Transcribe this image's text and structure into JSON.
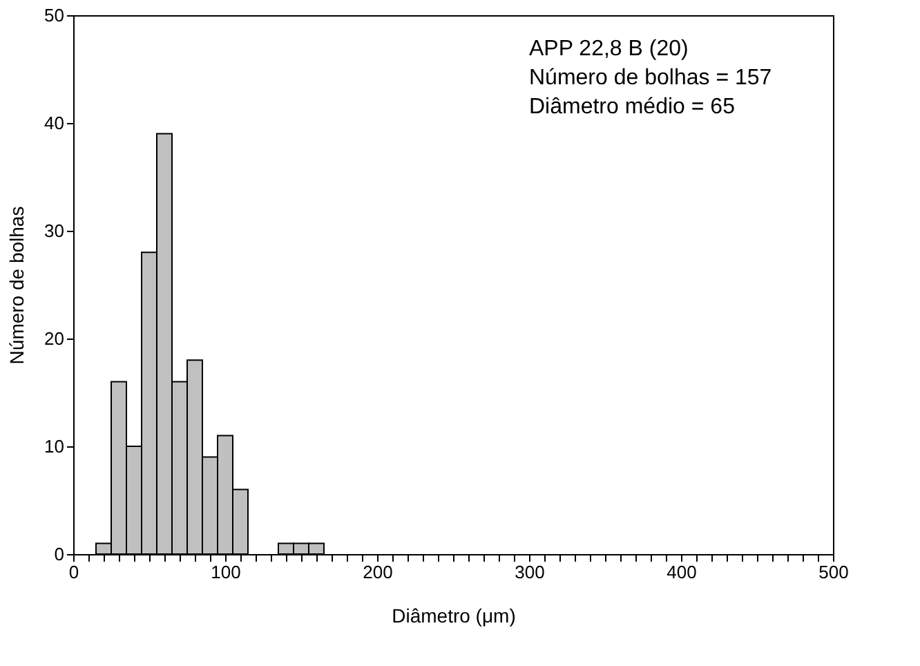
{
  "chart_data": {
    "type": "histogram",
    "xlabel": "Diâmetro (μm)",
    "ylabel": "Número de bolhas",
    "bins": [
      15,
      25,
      35,
      45,
      55,
      65,
      75,
      85,
      95,
      105,
      115,
      125,
      135,
      145,
      155,
      165
    ],
    "values": [
      1,
      16,
      10,
      28,
      39,
      16,
      18,
      9,
      11,
      6,
      0,
      0,
      1,
      1,
      1
    ],
    "color": "#c0c0c0",
    "xlim": [
      0,
      500
    ],
    "ylim": [
      0,
      50
    ],
    "xticks": [
      0,
      {
        "value": 10,
        "label": null
      },
      {
        "value": 20,
        "label": null
      },
      {
        "value": 30,
        "label": null
      },
      {
        "value": 40,
        "label": null
      },
      {
        "value": 50,
        "label": null
      },
      {
        "value": 60,
        "label": null
      },
      {
        "value": 70,
        "label": null
      },
      {
        "value": 80,
        "label": null
      },
      {
        "value": 90,
        "label": null
      },
      100,
      {
        "value": 110,
        "label": null
      },
      {
        "value": 120,
        "label": null
      },
      {
        "value": 130,
        "label": null
      },
      {
        "value": 140,
        "label": null
      },
      {
        "value": 150,
        "label": null
      },
      {
        "value": 160,
        "label": null
      },
      {
        "value": 170,
        "label": null
      },
      {
        "value": 180,
        "label": null
      },
      {
        "value": 190,
        "label": null
      },
      200,
      {
        "value": 210,
        "label": null
      },
      {
        "value": 220,
        "label": null
      },
      {
        "value": 230,
        "label": null
      },
      {
        "value": 240,
        "label": null
      },
      {
        "value": 250,
        "label": null
      },
      {
        "value": 260,
        "label": null
      },
      {
        "value": 270,
        "label": null
      },
      {
        "value": 280,
        "label": null
      },
      {
        "value": 290,
        "label": null
      },
      300,
      {
        "value": 310,
        "label": null
      },
      {
        "value": 320,
        "label": null
      },
      {
        "value": 330,
        "label": null
      },
      {
        "value": 340,
        "label": null
      },
      {
        "value": 350,
        "label": null
      },
      {
        "value": 360,
        "label": null
      },
      {
        "value": 370,
        "label": null
      },
      {
        "value": 380,
        "label": null
      },
      {
        "value": 390,
        "label": null
      },
      400,
      {
        "value": 410,
        "label": null
      },
      {
        "value": 420,
        "label": null
      },
      {
        "value": 430,
        "label": null
      },
      {
        "value": 440,
        "label": null
      },
      {
        "value": 450,
        "label": null
      },
      {
        "value": 460,
        "label": null
      },
      {
        "value": 470,
        "label": null
      },
      {
        "value": 480,
        "label": null
      },
      {
        "value": 490,
        "label": null
      },
      500
    ],
    "yticks": [
      0,
      10,
      20,
      30,
      40,
      50
    ],
    "grid": false,
    "annotations": [
      "APP 22,8 B (20)",
      "Número de bolhas = 157",
      "Diâmetro médio = 65"
    ]
  }
}
